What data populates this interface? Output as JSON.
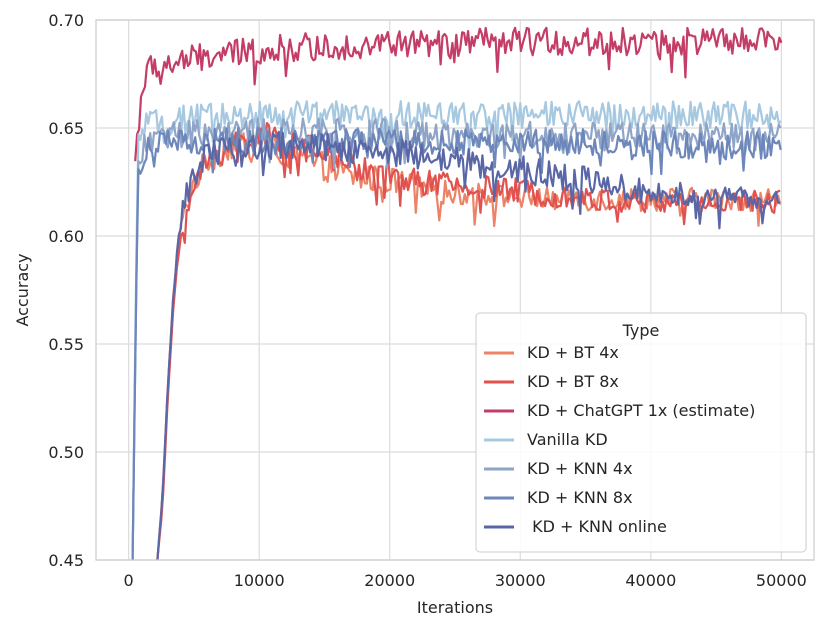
{
  "chart_data": {
    "type": "line",
    "title": "",
    "xlabel": "Iterations",
    "ylabel": "Accuracy",
    "xlim": [
      -2500,
      52500
    ],
    "ylim": [
      0.45,
      0.7
    ],
    "xticks": [
      0,
      10000,
      20000,
      30000,
      40000,
      50000
    ],
    "xtick_labels": [
      "0",
      "10000",
      "20000",
      "30000",
      "40000",
      "50000"
    ],
    "yticks": [
      0.45,
      0.5,
      0.55,
      0.6,
      0.65,
      0.7
    ],
    "ytick_labels": [
      "0.45",
      "0.50",
      "0.55",
      "0.60",
      "0.65",
      "0.70"
    ],
    "grid": true,
    "legend_title": "Type",
    "legend_position": "lower-right",
    "series": [
      {
        "name": "KD + BT 4x",
        "color": "#ec8366",
        "x": [
          2200,
          2600,
          3000,
          3400,
          3800,
          4200,
          5000,
          6000,
          8000,
          10000,
          12000,
          15000,
          17500,
          20000,
          22500,
          25000,
          27500,
          30000,
          32500,
          35000,
          37500,
          40000,
          42500,
          45000,
          47500,
          50000
        ],
        "y": [
          0.45,
          0.48,
          0.53,
          0.57,
          0.595,
          0.61,
          0.625,
          0.635,
          0.642,
          0.645,
          0.638,
          0.632,
          0.627,
          0.626,
          0.622,
          0.62,
          0.619,
          0.618,
          0.617,
          0.617,
          0.617,
          0.617,
          0.617,
          0.617,
          0.617,
          0.617
        ]
      },
      {
        "name": "KD + BT 8x",
        "color": "#e0514f",
        "x": [
          2200,
          2600,
          3000,
          3400,
          3800,
          4200,
          5000,
          6000,
          8000,
          10000,
          12000,
          15000,
          17500,
          20000,
          22500,
          25000,
          27500,
          30000,
          32500,
          35000,
          37500,
          40000,
          42500,
          45000,
          47500,
          50000
        ],
        "y": [
          0.45,
          0.475,
          0.525,
          0.565,
          0.592,
          0.607,
          0.622,
          0.634,
          0.643,
          0.647,
          0.643,
          0.638,
          0.632,
          0.628,
          0.625,
          0.623,
          0.622,
          0.621,
          0.619,
          0.617,
          0.616,
          0.615,
          0.616,
          0.616,
          0.616,
          0.616
        ]
      },
      {
        "name": "KD + ChatGPT 1x (estimate)",
        "color": "#c33d66",
        "x": [
          500,
          1000,
          1500,
          2000,
          3000,
          5000,
          7500,
          10000,
          12500,
          15000,
          17500,
          20000,
          22500,
          25000,
          27500,
          30000,
          32500,
          35000,
          37500,
          40000,
          42500,
          45000,
          47500,
          50000
        ],
        "y": [
          0.635,
          0.668,
          0.676,
          0.679,
          0.679,
          0.682,
          0.684,
          0.686,
          0.687,
          0.688,
          0.688,
          0.689,
          0.689,
          0.689,
          0.69,
          0.69,
          0.69,
          0.69,
          0.69,
          0.69,
          0.69,
          0.69,
          0.69,
          0.69
        ]
      },
      {
        "name": "Vanilla KD",
        "color": "#a6c8e1",
        "x": [
          300,
          700,
          1200,
          2000,
          4000,
          6000,
          8000,
          10000,
          12500,
          15000,
          20000,
          25000,
          30000,
          35000,
          40000,
          45000,
          50000
        ],
        "y": [
          0.45,
          0.645,
          0.65,
          0.652,
          0.654,
          0.655,
          0.656,
          0.656,
          0.656,
          0.656,
          0.656,
          0.656,
          0.656,
          0.656,
          0.656,
          0.656,
          0.656
        ]
      },
      {
        "name": "KD + KNN 4x",
        "color": "#8ea5c8",
        "x": [
          300,
          700,
          1200,
          2000,
          4000,
          6000,
          8000,
          10000,
          12500,
          15000,
          20000,
          25000,
          30000,
          35000,
          40000,
          45000,
          50000
        ],
        "y": [
          0.45,
          0.63,
          0.645,
          0.645,
          0.647,
          0.648,
          0.648,
          0.648,
          0.648,
          0.648,
          0.648,
          0.647,
          0.647,
          0.647,
          0.646,
          0.646,
          0.646
        ]
      },
      {
        "name": "KD + KNN 8x",
        "color": "#6d87bb",
        "x": [
          300,
          700,
          1200,
          2000,
          4000,
          6000,
          8000,
          10000,
          12500,
          15000,
          20000,
          25000,
          30000,
          35000,
          40000,
          45000,
          50000
        ],
        "y": [
          0.45,
          0.625,
          0.64,
          0.642,
          0.643,
          0.643,
          0.644,
          0.644,
          0.644,
          0.644,
          0.643,
          0.643,
          0.643,
          0.643,
          0.642,
          0.642,
          0.642
        ]
      },
      {
        "name": " KD + KNN online",
        "color": "#5a67a6",
        "x": [
          2200,
          2600,
          3000,
          3400,
          3800,
          4200,
          5000,
          6000,
          8000,
          10000,
          12000,
          15000,
          17500,
          20000,
          22500,
          25000,
          27500,
          30000,
          32500,
          35000,
          37500,
          40000,
          42500,
          45000,
          47500,
          50000
        ],
        "y": [
          0.45,
          0.48,
          0.53,
          0.57,
          0.6,
          0.615,
          0.628,
          0.638,
          0.641,
          0.642,
          0.642,
          0.641,
          0.64,
          0.639,
          0.637,
          0.635,
          0.633,
          0.631,
          0.628,
          0.626,
          0.623,
          0.621,
          0.619,
          0.618,
          0.617,
          0.617
        ]
      }
    ]
  }
}
